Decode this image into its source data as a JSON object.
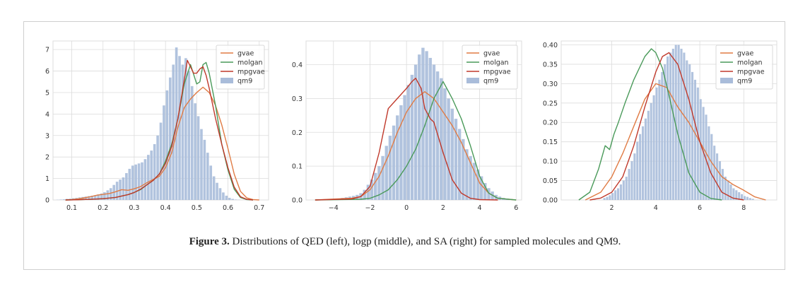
{
  "caption": {
    "label": "Figure 3.",
    "text": " Distributions of QED (left), logp (middle), and SA (right) for sampled molecules and QM9."
  },
  "chart_data": [
    {
      "type": "area",
      "xlim": [
        0.04,
        0.73
      ],
      "ylim": [
        0,
        7.4
      ],
      "xticks": [
        "0.1",
        "0.2",
        "0.3",
        "0.4",
        "0.5",
        "0.6",
        "0.7"
      ],
      "yticks": [
        "0",
        "1",
        "2",
        "3",
        "4",
        "5",
        "6",
        "7"
      ],
      "legend_loc": "top-right",
      "legend": [
        "gvae",
        "molgan",
        "mpgvae",
        "qm9"
      ],
      "hist": {
        "name": "qm9",
        "x0": 0.05,
        "width": 0.01,
        "values": [
          0.01,
          0.02,
          0.03,
          0.05,
          0.06,
          0.08,
          0.1,
          0.12,
          0.14,
          0.16,
          0.18,
          0.2,
          0.22,
          0.26,
          0.3,
          0.36,
          0.45,
          0.55,
          0.7,
          0.85,
          0.95,
          1.05,
          1.25,
          1.45,
          1.6,
          1.65,
          1.7,
          1.75,
          1.9,
          2.1,
          2.3,
          2.6,
          3.0,
          3.6,
          4.4,
          5.1,
          5.7,
          6.3,
          7.1,
          6.7,
          6.3,
          6.6,
          6.0,
          5.3,
          4.5,
          3.9,
          3.3,
          2.8,
          2.2,
          1.6,
          1.1,
          0.8,
          0.55,
          0.35,
          0.2,
          0.1,
          0.05,
          0.02,
          0.01,
          0.0
        ]
      },
      "series": [
        {
          "name": "gvae",
          "color": "#e07b44",
          "x": [
            0.08,
            0.1,
            0.12,
            0.14,
            0.16,
            0.18,
            0.2,
            0.22,
            0.24,
            0.26,
            0.28,
            0.3,
            0.32,
            0.34,
            0.36,
            0.38,
            0.4,
            0.42,
            0.44,
            0.46,
            0.48,
            0.5,
            0.52,
            0.54,
            0.56,
            0.58,
            0.6,
            0.62,
            0.64,
            0.66,
            0.68,
            0.7
          ],
          "y": [
            0.0,
            0.02,
            0.05,
            0.1,
            0.15,
            0.22,
            0.26,
            0.3,
            0.38,
            0.48,
            0.45,
            0.52,
            0.62,
            0.8,
            0.95,
            1.1,
            1.5,
            2.2,
            3.4,
            4.3,
            4.7,
            5.0,
            5.25,
            5.0,
            4.4,
            3.5,
            2.4,
            1.2,
            0.4,
            0.1,
            0.02,
            0.0
          ]
        },
        {
          "name": "molgan",
          "color": "#4a9a5a",
          "x": [
            0.08,
            0.12,
            0.16,
            0.2,
            0.24,
            0.28,
            0.3,
            0.32,
            0.34,
            0.36,
            0.38,
            0.4,
            0.42,
            0.44,
            0.46,
            0.48,
            0.5,
            0.51,
            0.52,
            0.53,
            0.54,
            0.56,
            0.58,
            0.6,
            0.62,
            0.64,
            0.66,
            0.68
          ],
          "y": [
            0.0,
            0.01,
            0.03,
            0.06,
            0.12,
            0.25,
            0.35,
            0.48,
            0.7,
            0.9,
            1.2,
            1.8,
            2.6,
            3.8,
            5.4,
            6.3,
            5.4,
            5.5,
            6.3,
            6.4,
            5.9,
            4.4,
            2.6,
            1.4,
            0.5,
            0.12,
            0.02,
            0.0
          ]
        },
        {
          "name": "mpgvae",
          "color": "#c0392b",
          "x": [
            0.08,
            0.12,
            0.16,
            0.2,
            0.24,
            0.28,
            0.3,
            0.32,
            0.34,
            0.36,
            0.38,
            0.4,
            0.42,
            0.44,
            0.46,
            0.47,
            0.48,
            0.49,
            0.5,
            0.51,
            0.52,
            0.53,
            0.54,
            0.56,
            0.58,
            0.6,
            0.62,
            0.64,
            0.66,
            0.68
          ],
          "y": [
            0.0,
            0.01,
            0.03,
            0.06,
            0.12,
            0.25,
            0.35,
            0.5,
            0.7,
            0.9,
            1.2,
            1.7,
            2.5,
            3.8,
            5.6,
            6.5,
            6.2,
            5.9,
            5.9,
            6.1,
            6.2,
            5.8,
            5.2,
            3.8,
            2.6,
            1.5,
            0.6,
            0.15,
            0.03,
            0.0
          ]
        }
      ]
    },
    {
      "type": "area",
      "xlim": [
        -5.5,
        6.3
      ],
      "ylim": [
        0,
        0.47
      ],
      "xticks": [
        "−4",
        "−2",
        "0",
        "2",
        "4",
        "6"
      ],
      "yticks": [
        "0.0",
        "0.1",
        "0.2",
        "0.3",
        "0.4"
      ],
      "legend_loc": "top-right",
      "legend": [
        "gvae",
        "molgan",
        "mpgvae",
        "qm9"
      ],
      "hist": {
        "name": "qm9",
        "x0": -4.4,
        "width": 0.2,
        "values": [
          0.0,
          0.002,
          0.003,
          0.004,
          0.006,
          0.008,
          0.01,
          0.012,
          0.015,
          0.02,
          0.03,
          0.045,
          0.06,
          0.08,
          0.1,
          0.13,
          0.16,
          0.19,
          0.22,
          0.25,
          0.28,
          0.31,
          0.34,
          0.37,
          0.4,
          0.43,
          0.45,
          0.44,
          0.42,
          0.4,
          0.38,
          0.36,
          0.33,
          0.3,
          0.27,
          0.24,
          0.21,
          0.18,
          0.15,
          0.13,
          0.11,
          0.09,
          0.07,
          0.05,
          0.035,
          0.025,
          0.015,
          0.01,
          0.006,
          0.004
        ]
      },
      "series": [
        {
          "name": "gvae",
          "color": "#e07b44",
          "x": [
            -5.0,
            -3.0,
            -2.5,
            -2.0,
            -1.5,
            -1.0,
            -0.5,
            0.0,
            0.5,
            1.0,
            1.5,
            2.0,
            2.5,
            3.0,
            3.5,
            4.0,
            4.5,
            5.0,
            6.0
          ],
          "y": [
            0.0,
            0.005,
            0.01,
            0.03,
            0.07,
            0.13,
            0.2,
            0.26,
            0.3,
            0.32,
            0.3,
            0.26,
            0.22,
            0.17,
            0.11,
            0.05,
            0.02,
            0.005,
            0.0
          ]
        },
        {
          "name": "molgan",
          "color": "#4a9a5a",
          "x": [
            -5.0,
            -2.5,
            -2.0,
            -1.5,
            -1.0,
            -0.5,
            0.0,
            0.5,
            1.0,
            1.5,
            2.0,
            2.5,
            3.0,
            3.5,
            4.0,
            4.5,
            5.0,
            6.0
          ],
          "y": [
            0.0,
            0.002,
            0.005,
            0.015,
            0.03,
            0.06,
            0.1,
            0.15,
            0.22,
            0.3,
            0.35,
            0.3,
            0.24,
            0.16,
            0.07,
            0.02,
            0.005,
            0.0
          ]
        },
        {
          "name": "mpgvae",
          "color": "#c0392b",
          "x": [
            -5.0,
            -3.0,
            -2.5,
            -2.0,
            -1.5,
            -1.0,
            -0.5,
            0.0,
            0.3,
            0.5,
            0.8,
            1.0,
            1.3,
            1.5,
            2.0,
            2.5,
            3.0,
            3.5,
            4.0,
            5.0
          ],
          "y": [
            0.0,
            0.003,
            0.01,
            0.04,
            0.14,
            0.27,
            0.3,
            0.33,
            0.35,
            0.36,
            0.33,
            0.27,
            0.24,
            0.23,
            0.14,
            0.06,
            0.02,
            0.005,
            0.001,
            0.0
          ]
        }
      ]
    },
    {
      "type": "area",
      "xlim": [
        -0.3,
        9.5
      ],
      "ylim": [
        0,
        0.41
      ],
      "xticks": [
        "2",
        "4",
        "6",
        "8"
      ],
      "yticks": [
        "0.00",
        "0.05",
        "0.10",
        "0.15",
        "0.20",
        "0.25",
        "0.30",
        "0.35",
        "0.40"
      ],
      "legend_loc": "top-right",
      "legend": [
        "gvae",
        "molgan",
        "mpgvae",
        "qm9"
      ],
      "hist": {
        "name": "qm9",
        "x0": 1.6,
        "width": 0.125,
        "values": [
          0.005,
          0.008,
          0.012,
          0.018,
          0.025,
          0.03,
          0.04,
          0.05,
          0.06,
          0.08,
          0.1,
          0.12,
          0.15,
          0.17,
          0.19,
          0.21,
          0.23,
          0.25,
          0.27,
          0.29,
          0.31,
          0.33,
          0.35,
          0.37,
          0.38,
          0.39,
          0.4,
          0.4,
          0.39,
          0.38,
          0.36,
          0.35,
          0.33,
          0.31,
          0.29,
          0.26,
          0.24,
          0.22,
          0.19,
          0.17,
          0.14,
          0.12,
          0.1,
          0.08,
          0.06,
          0.05,
          0.04,
          0.03,
          0.025,
          0.02,
          0.015,
          0.01,
          0.008,
          0.005,
          0.003
        ]
      },
      "series": [
        {
          "name": "gvae",
          "color": "#e07b44",
          "x": [
            0.8,
            1.5,
            2.0,
            2.5,
            3.0,
            3.5,
            4.0,
            4.5,
            5.0,
            5.5,
            6.0,
            6.5,
            7.0,
            7.5,
            8.0,
            8.5,
            9.0
          ],
          "y": [
            0.0,
            0.02,
            0.06,
            0.12,
            0.19,
            0.26,
            0.3,
            0.29,
            0.24,
            0.2,
            0.15,
            0.1,
            0.06,
            0.04,
            0.025,
            0.008,
            0.0
          ]
        },
        {
          "name": "molgan",
          "color": "#4a9a5a",
          "x": [
            0.5,
            1.0,
            1.4,
            1.7,
            1.9,
            2.1,
            2.3,
            2.6,
            3.0,
            3.5,
            3.8,
            4.0,
            4.3,
            4.6,
            5.0,
            5.5,
            6.0,
            6.5,
            7.0
          ],
          "y": [
            0.0,
            0.02,
            0.08,
            0.14,
            0.13,
            0.17,
            0.2,
            0.25,
            0.31,
            0.37,
            0.39,
            0.38,
            0.34,
            0.27,
            0.17,
            0.07,
            0.02,
            0.004,
            0.0
          ]
        },
        {
          "name": "mpgvae",
          "color": "#c0392b",
          "x": [
            1.0,
            1.5,
            2.0,
            2.5,
            3.0,
            3.5,
            4.0,
            4.3,
            4.6,
            5.0,
            5.5,
            6.0,
            6.5,
            7.0,
            7.5,
            8.0
          ],
          "y": [
            0.0,
            0.005,
            0.02,
            0.06,
            0.14,
            0.24,
            0.33,
            0.37,
            0.38,
            0.35,
            0.26,
            0.15,
            0.07,
            0.02,
            0.005,
            0.0
          ]
        }
      ]
    }
  ]
}
